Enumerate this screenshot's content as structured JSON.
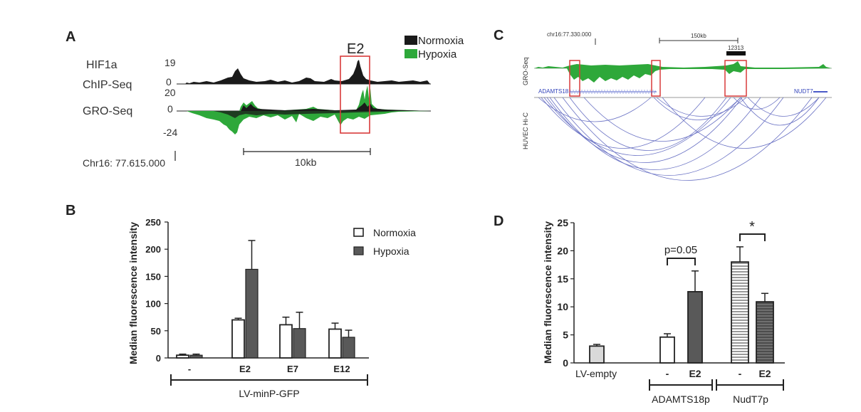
{
  "chart_data": [
    {
      "panel": "A",
      "type": "area",
      "tracks": [
        {
          "name": "HIF1a ChIP-Seq",
          "label_line1": "HIF1a",
          "label_line2": "ChIP-Seq",
          "range_max": "19",
          "range_min": "0"
        },
        {
          "name": "GRO-Seq",
          "label": "GRO-Seq",
          "range_max": "20",
          "range_zero": "0",
          "range_min": "-24"
        }
      ],
      "legend": [
        {
          "label": "Normoxia",
          "color": "#1a1a1a"
        },
        {
          "label": "Hypoxia",
          "color": "#2ea83a"
        }
      ],
      "highlight": "E2",
      "coordinate": "Chr16: 77.615.000",
      "scale_bar": "10kb"
    },
    {
      "panel": "C",
      "type": "area",
      "coordinate": "chr16:77.330.000",
      "scale_bar": "150kb",
      "feature_label": "12313",
      "tracks": [
        "GRO-Seq",
        "HUVEC Hi-C"
      ],
      "genes": [
        "ADAMTS18",
        "NUDT7"
      ]
    },
    {
      "panel": "B",
      "type": "bar",
      "ylabel": "Median fluorescence intensity",
      "ylim": [
        0,
        250
      ],
      "yticks": [
        "0",
        "50",
        "100",
        "150",
        "200",
        "250"
      ],
      "categories": [
        "-",
        "E2",
        "E7",
        "E12"
      ],
      "series": [
        {
          "name": "Normoxia",
          "values": [
            5,
            70,
            61,
            53
          ],
          "errors": [
            2,
            3,
            14,
            11
          ]
        },
        {
          "name": "Hypoxia",
          "values": [
            5,
            163,
            54,
            38
          ],
          "errors": [
            2,
            53,
            30,
            13
          ]
        }
      ],
      "group_label": "LV-minP-GFP"
    },
    {
      "panel": "D",
      "type": "bar",
      "ylabel": "Median fluorescence intensity",
      "ylim": [
        0,
        25
      ],
      "yticks": [
        "0",
        "5",
        "10",
        "15",
        "20",
        "25"
      ],
      "bars": [
        {
          "category": "LV-empty",
          "value": 3.0,
          "error": 0.3
        },
        {
          "category": "-",
          "group": "ADAMTS18p",
          "value": 4.6,
          "error": 0.6
        },
        {
          "category": "E2",
          "group": "ADAMTS18p",
          "value": 12.7,
          "error": 3.7
        },
        {
          "category": "-",
          "group": "NudT7p",
          "value": 18.0,
          "error": 2.7
        },
        {
          "category": "E2",
          "group": "NudT7p",
          "value": 10.9,
          "error": 1.5
        }
      ],
      "groups": [
        "ADAMTS18p",
        "NudT7p"
      ],
      "annotations": [
        "p=0.05",
        "*"
      ]
    }
  ],
  "panels": {
    "A": "A",
    "B": "B",
    "C": "C",
    "D": "D"
  }
}
